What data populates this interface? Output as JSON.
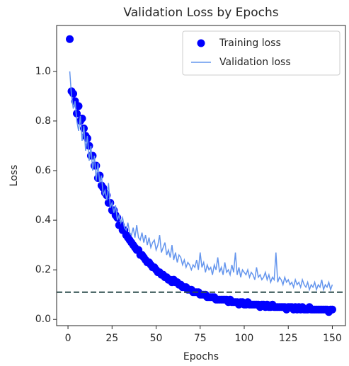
{
  "chart_data": {
    "type": "line",
    "title": "Validation Loss by Epochs",
    "x_label": "Epochs",
    "y_label": "Loss",
    "x": [
      1,
      2,
      3,
      4,
      5,
      6,
      7,
      8,
      9,
      10,
      11,
      12,
      13,
      14,
      15,
      16,
      17,
      18,
      19,
      20,
      21,
      22,
      23,
      24,
      25,
      26,
      27,
      28,
      29,
      30,
      31,
      32,
      33,
      34,
      35,
      36,
      37,
      38,
      39,
      40,
      41,
      42,
      43,
      44,
      45,
      46,
      47,
      48,
      49,
      50,
      51,
      52,
      53,
      54,
      55,
      56,
      57,
      58,
      59,
      60,
      61,
      62,
      63,
      64,
      65,
      66,
      67,
      68,
      69,
      70,
      71,
      72,
      73,
      74,
      75,
      76,
      77,
      78,
      79,
      80,
      81,
      82,
      83,
      84,
      85,
      86,
      87,
      88,
      89,
      90,
      91,
      92,
      93,
      94,
      95,
      96,
      97,
      98,
      99,
      100,
      101,
      102,
      103,
      104,
      105,
      106,
      107,
      108,
      109,
      110,
      111,
      112,
      113,
      114,
      115,
      116,
      117,
      118,
      119,
      120,
      121,
      122,
      123,
      124,
      125,
      126,
      127,
      128,
      129,
      130,
      131,
      132,
      133,
      134,
      135,
      136,
      137,
      138,
      139,
      140,
      141,
      142,
      143,
      144,
      145,
      146,
      147,
      148,
      149,
      150
    ],
    "series": [
      {
        "name": "Training loss",
        "style": "markers",
        "color": "#0000ff",
        "values": [
          1.13,
          0.92,
          0.91,
          0.88,
          0.83,
          0.86,
          0.8,
          0.81,
          0.77,
          0.74,
          0.73,
          0.7,
          0.66,
          0.66,
          0.62,
          0.62,
          0.57,
          0.58,
          0.54,
          0.53,
          0.51,
          0.5,
          0.47,
          0.47,
          0.44,
          0.44,
          0.42,
          0.41,
          0.38,
          0.38,
          0.36,
          0.36,
          0.34,
          0.33,
          0.32,
          0.31,
          0.3,
          0.29,
          0.28,
          0.28,
          0.26,
          0.26,
          0.25,
          0.24,
          0.23,
          0.23,
          0.22,
          0.21,
          0.21,
          0.2,
          0.19,
          0.19,
          0.18,
          0.18,
          0.17,
          0.17,
          0.16,
          0.16,
          0.15,
          0.16,
          0.15,
          0.15,
          0.14,
          0.14,
          0.13,
          0.13,
          0.13,
          0.12,
          0.12,
          0.12,
          0.11,
          0.11,
          0.11,
          0.11,
          0.1,
          0.1,
          0.1,
          0.1,
          0.09,
          0.09,
          0.09,
          0.09,
          0.09,
          0.08,
          0.08,
          0.08,
          0.08,
          0.08,
          0.08,
          0.08,
          0.07,
          0.08,
          0.07,
          0.07,
          0.07,
          0.07,
          0.06,
          0.07,
          0.07,
          0.06,
          0.06,
          0.07,
          0.06,
          0.06,
          0.06,
          0.06,
          0.06,
          0.06,
          0.05,
          0.06,
          0.06,
          0.05,
          0.06,
          0.05,
          0.05,
          0.06,
          0.05,
          0.05,
          0.05,
          0.05,
          0.05,
          0.05,
          0.05,
          0.04,
          0.05,
          0.05,
          0.05,
          0.04,
          0.05,
          0.04,
          0.05,
          0.04,
          0.05,
          0.04,
          0.04,
          0.04,
          0.05,
          0.04,
          0.04,
          0.04,
          0.04,
          0.04,
          0.04,
          0.04,
          0.04,
          0.04,
          0.04,
          0.03,
          0.04,
          0.04
        ]
      },
      {
        "name": "Validation loss",
        "style": "line",
        "color": "#6495ed",
        "values": [
          1.0,
          0.9,
          0.85,
          0.88,
          0.8,
          0.76,
          0.82,
          0.72,
          0.78,
          0.68,
          0.74,
          0.64,
          0.7,
          0.6,
          0.66,
          0.56,
          0.63,
          0.55,
          0.58,
          0.5,
          0.52,
          0.48,
          0.55,
          0.45,
          0.47,
          0.43,
          0.46,
          0.4,
          0.42,
          0.39,
          0.41,
          0.37,
          0.36,
          0.39,
          0.35,
          0.34,
          0.37,
          0.33,
          0.38,
          0.33,
          0.32,
          0.35,
          0.31,
          0.34,
          0.3,
          0.33,
          0.29,
          0.31,
          0.32,
          0.28,
          0.3,
          0.34,
          0.27,
          0.29,
          0.31,
          0.26,
          0.28,
          0.25,
          0.3,
          0.24,
          0.27,
          0.23,
          0.26,
          0.25,
          0.22,
          0.24,
          0.21,
          0.23,
          0.22,
          0.2,
          0.22,
          0.21,
          0.24,
          0.2,
          0.27,
          0.21,
          0.23,
          0.19,
          0.22,
          0.2,
          0.21,
          0.18,
          0.22,
          0.2,
          0.25,
          0.19,
          0.21,
          0.18,
          0.23,
          0.19,
          0.2,
          0.18,
          0.22,
          0.19,
          0.27,
          0.18,
          0.21,
          0.17,
          0.2,
          0.19,
          0.18,
          0.2,
          0.17,
          0.19,
          0.18,
          0.16,
          0.21,
          0.17,
          0.18,
          0.16,
          0.17,
          0.19,
          0.16,
          0.18,
          0.15,
          0.17,
          0.16,
          0.27,
          0.15,
          0.17,
          0.16,
          0.14,
          0.17,
          0.15,
          0.16,
          0.14,
          0.15,
          0.13,
          0.16,
          0.14,
          0.15,
          0.13,
          0.16,
          0.14,
          0.13,
          0.15,
          0.12,
          0.14,
          0.13,
          0.15,
          0.12,
          0.14,
          0.13,
          0.16,
          0.12,
          0.14,
          0.13,
          0.15,
          0.12,
          0.14
        ]
      }
    ],
    "reference_line": 0.11,
    "reference_line_color": "#2f4f4f",
    "xlim": [
      -6.45,
      157.45
    ],
    "xticks": [
      0,
      25,
      50,
      75,
      100,
      125,
      150
    ],
    "ylim": [
      -0.025,
      1.185
    ],
    "yticks": [
      {
        "value": 0,
        "label": "0.0"
      },
      0.2,
      0.4,
      0.6,
      0.8,
      {
        "value": 1,
        "label": "1.0"
      }
    ],
    "legend": "upper right"
  }
}
